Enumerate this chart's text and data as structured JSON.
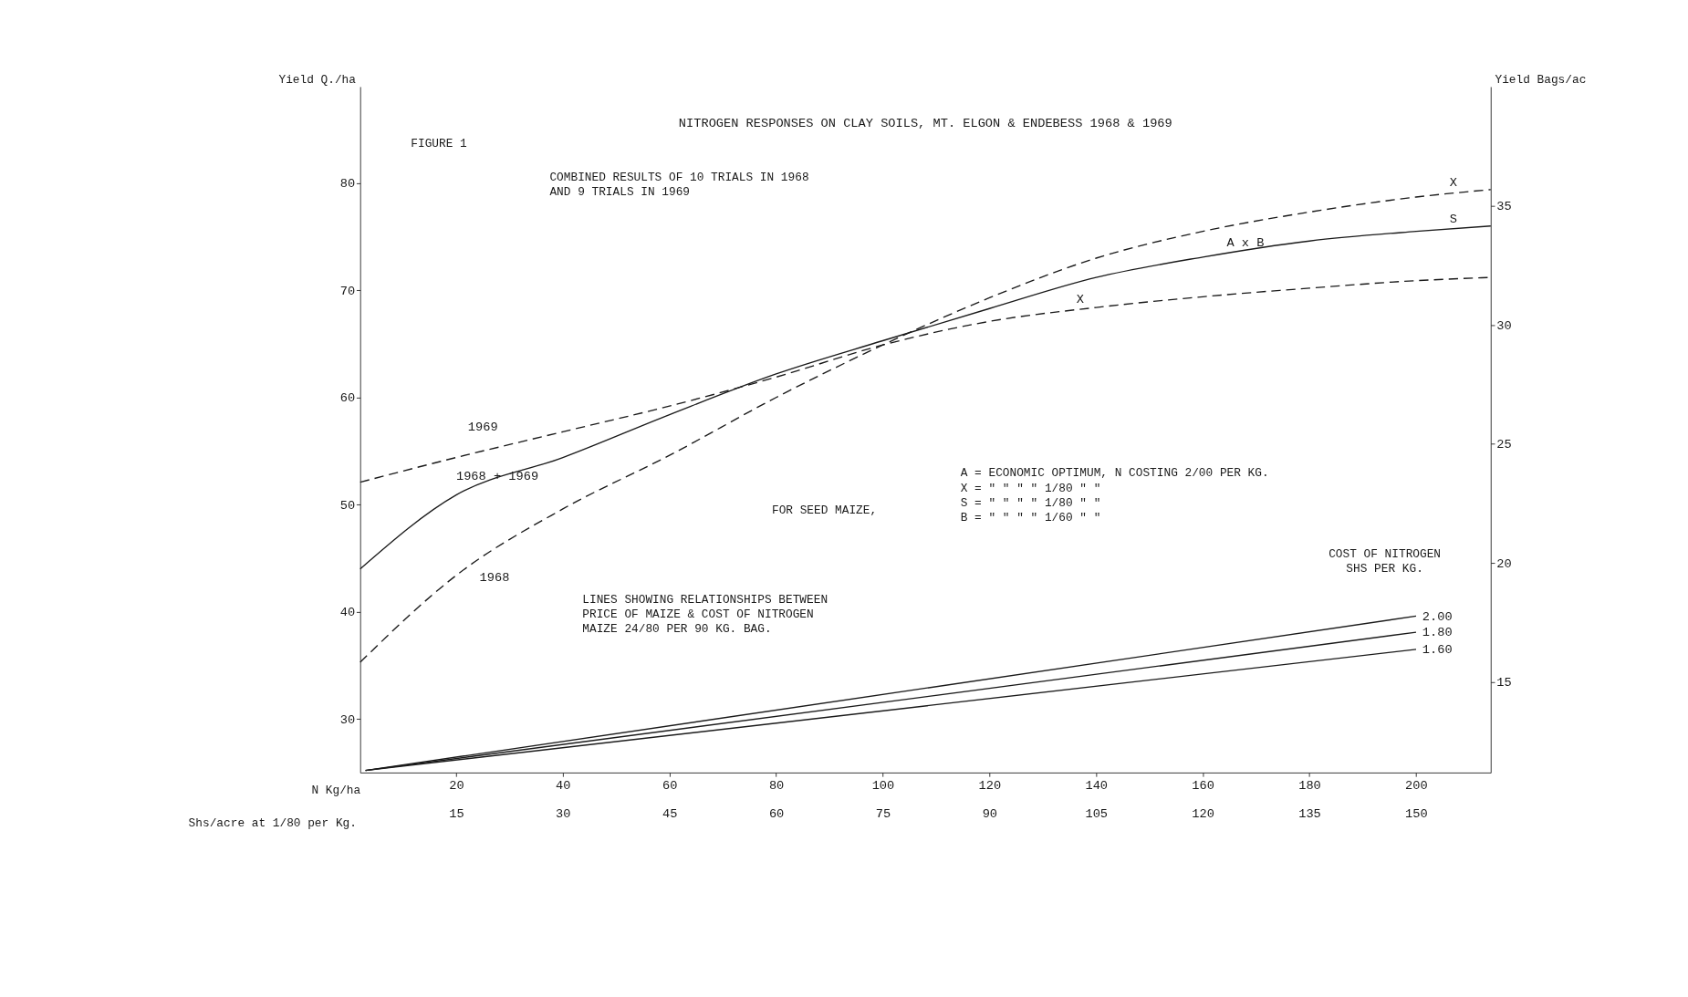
{
  "chart_data": {
    "type": "line",
    "title": "NITROGEN RESPONSES ON CLAY SOILS, MT. ELGON & ENDEBESS     1968 & 1969",
    "xlabel": "N Kg/ha",
    "ylabel": "Yield Q./ha",
    "y2label": "Yield Bags/ac",
    "x2label": "Shs/acre at 1/80 per Kg.",
    "xlim": [
      2,
      214
    ],
    "xticks": [
      20,
      40,
      60,
      80,
      100,
      120,
      140,
      160,
      180,
      200
    ],
    "x2lim": [
      1.5,
      160.5
    ],
    "x2ticks": [
      15,
      30,
      45,
      60,
      75,
      90,
      105,
      120,
      135,
      150
    ],
    "ylim": [
      25,
      89
    ],
    "yticks": [
      30,
      40,
      50,
      60,
      70,
      80
    ],
    "y2lim": [
      11.2,
      40
    ],
    "y2ticks": [
      15,
      20,
      25,
      30,
      35
    ],
    "grid": false,
    "series": [
      {
        "name": "1968 + 1969",
        "color": "#1a1a1a",
        "line_style": "solid",
        "x": [
          2,
          20,
          40,
          60,
          80,
          100,
          120,
          140,
          160,
          180,
          200,
          214
        ],
        "values": [
          44,
          50.9,
          54.4,
          58.4,
          62.2,
          65.3,
          68.3,
          71.2,
          73.1,
          74.6,
          75.5,
          76
        ]
      },
      {
        "name": "1969",
        "color": "#1a1a1a",
        "line_style": "dashed",
        "x": [
          2,
          20,
          40,
          60,
          80,
          100,
          120,
          140,
          160,
          180,
          200,
          214
        ],
        "values": [
          52.1,
          54.4,
          56.8,
          59.2,
          61.9,
          64.9,
          67.1,
          68.4,
          69.4,
          70.2,
          70.9,
          71.2
        ]
      },
      {
        "name": "1968",
        "color": "#1a1a1a",
        "line_style": "dashed",
        "x": [
          2,
          20,
          40,
          60,
          80,
          100,
          120,
          140,
          160,
          180,
          200,
          214
        ],
        "values": [
          35.3,
          43.4,
          49.6,
          54.6,
          60,
          64.9,
          69.3,
          73,
          75.5,
          77.3,
          78.7,
          79.4
        ]
      },
      {
        "name": "2.00",
        "color": "#1a1a1a",
        "line_style": "solid",
        "x": [
          3,
          200
        ],
        "values": [
          25.2,
          39.6
        ]
      },
      {
        "name": "1.80",
        "color": "#1a1a1a",
        "line_style": "solid",
        "x": [
          3,
          200
        ],
        "values": [
          25.2,
          38.1
        ]
      },
      {
        "name": "1.60",
        "color": "#1a1a1a",
        "line_style": "solid",
        "x": [
          3,
          200
        ],
        "values": [
          25.2,
          36.5
        ]
      }
    ],
    "annotations": [
      "FIGURE 1",
      "COMBINED RESULTS OF 10 TRIALS IN 1968\n                   AND 9 TRIALS IN 1969",
      "A = ECONOMIC OPTIMUM, N COSTING 2/00 PER KG.\nX =      \"          \"    \"    \"   1/80  \"  \"\nS =      \"          \"    \"    \"   1/80  \"  \"\nB =      \"          \"    \"    \"   1/60  \"  \"",
      "FOR SEED MAIZE,",
      "COST OF NITROGEN\n  SHS PER KG.",
      "LINES SHOWING RELATIONSHIPS BETWEEN\nPRICE OF MAIZE & COST OF NITROGEN\nMAIZE  24/80 PER 90 KG. BAG.",
      {
        "text": "X",
        "x": 207,
        "y": 79.2
      },
      {
        "text": "S",
        "x": 207,
        "y": 75.8
      },
      {
        "text": "A x B",
        "x": 168,
        "y": 73.6
      },
      {
        "text": "X",
        "x": 137,
        "y": 68.3
      }
    ]
  }
}
